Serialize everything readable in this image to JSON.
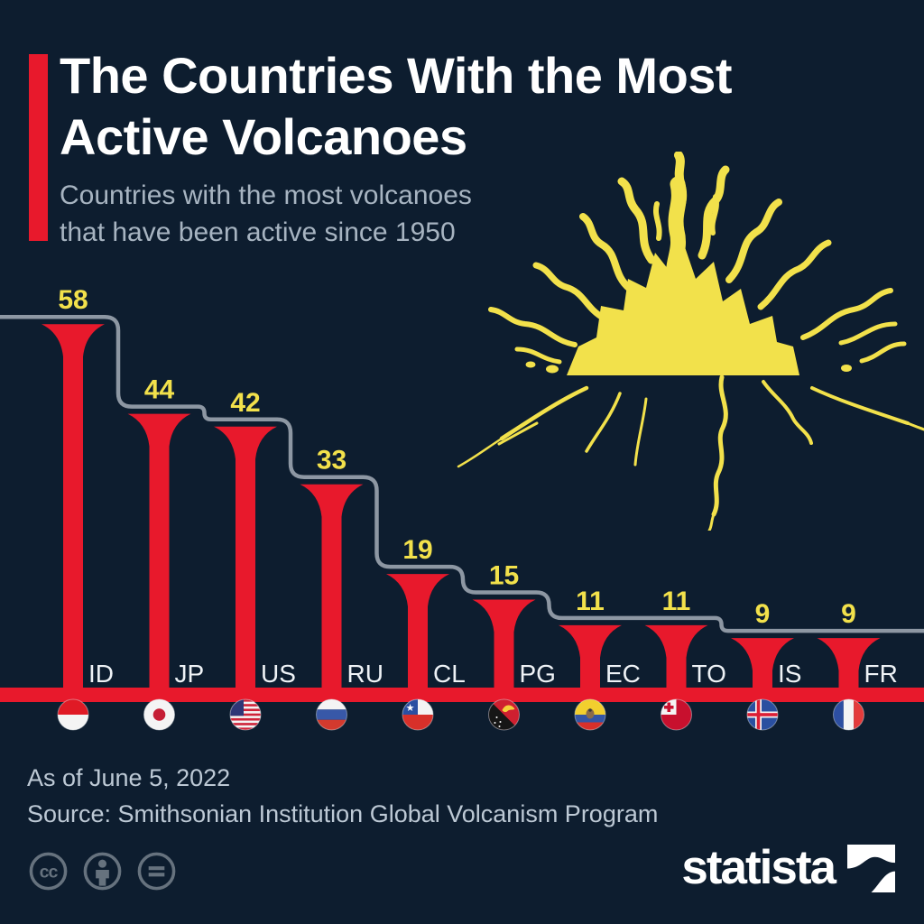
{
  "header": {
    "title_line1": "The Countries With the Most",
    "title_line2": "Active Volcanoes",
    "subtitle_line1": "Countries with the most volcanoes",
    "subtitle_line2": "that have been active since 1950"
  },
  "chart_data": {
    "type": "bar",
    "title": "The Countries With the Most Active Volcanoes",
    "subtitle": "Countries with the most volcanoes that have been active since 1950",
    "categories": [
      "ID",
      "JP",
      "US",
      "RU",
      "CL",
      "PG",
      "EC",
      "TO",
      "IS",
      "FR"
    ],
    "values": [
      58,
      44,
      42,
      33,
      19,
      15,
      11,
      11,
      9,
      9
    ],
    "ylim": [
      0,
      58
    ],
    "grid": false,
    "legend": false,
    "value_labels_shown": true,
    "bar_style": "volcano-funnel",
    "step_line": "descending outline above bar tops",
    "flags": [
      {
        "code": "ID",
        "icon": "indonesia-flag-icon"
      },
      {
        "code": "JP",
        "icon": "japan-flag-icon"
      },
      {
        "code": "US",
        "icon": "united-states-flag-icon"
      },
      {
        "code": "RU",
        "icon": "russia-flag-icon"
      },
      {
        "code": "CL",
        "icon": "chile-flag-icon"
      },
      {
        "code": "PG",
        "icon": "papua-new-guinea-flag-icon"
      },
      {
        "code": "EC",
        "icon": "ecuador-flag-icon"
      },
      {
        "code": "TO",
        "icon": "tonga-flag-icon"
      },
      {
        "code": "IS",
        "icon": "iceland-flag-icon"
      },
      {
        "code": "FR",
        "icon": "france-flag-icon"
      }
    ]
  },
  "footer": {
    "as_of": "As of June 5, 2022",
    "source": "Source: Smithsonian Institution Global Volcanism Program"
  },
  "branding": {
    "wordmark": "statista",
    "logo_icon": "statista-logo-icon"
  },
  "license": {
    "icons": [
      "creative-commons-icon",
      "attribution-icon",
      "no-derivatives-icon"
    ]
  },
  "colors": {
    "background": "#0d1d2f",
    "accent_red": "#e8192c",
    "value_yellow": "#f2e14b",
    "step_line_gray": "#8d97a3",
    "category_label": "#eef2f6",
    "subtitle_gray": "#a7b4c1",
    "footer_gray": "#bdc9d5",
    "illustration_yellow": "#f2e14b"
  }
}
